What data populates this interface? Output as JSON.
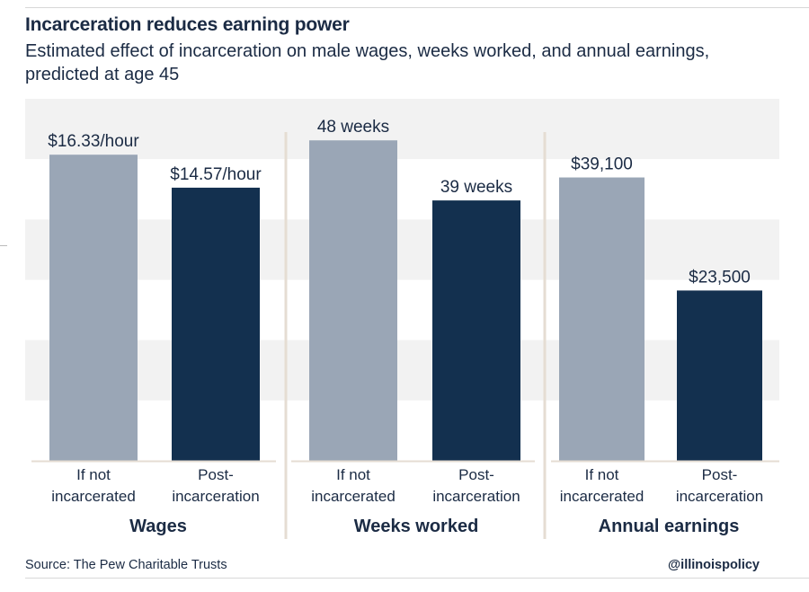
{
  "header": {
    "title": "Incarceration reduces earning power",
    "subtitle": "Estimated effect of incarceration on male wages, weeks worked, and annual earnings, predicted at age 45"
  },
  "footer": {
    "source": "Source: The Pew Charitable Trusts",
    "handle": "@illinoispolicy"
  },
  "colors": {
    "not_incarcerated": "#9aa6b6",
    "post_incarceration": "#13304f",
    "band_light": "#f2f2f2",
    "divider": "#e5ddd3"
  },
  "chart_data": [
    {
      "type": "bar",
      "group_label": "Wages",
      "categories": [
        "If not incarcerated",
        "Post-incarceration"
      ],
      "category_lines": [
        [
          "If not",
          "incarcerated"
        ],
        [
          "Post-",
          "incarceration"
        ]
      ],
      "values": [
        16.33,
        14.57
      ],
      "data_labels": [
        "$16.33/hour",
        "$14.57/hour"
      ],
      "ylim": [
        0,
        19.31
      ]
    },
    {
      "type": "bar",
      "group_label": "Weeks worked",
      "categories": [
        "If not incarcerated",
        "Post-incarceration"
      ],
      "category_lines": [
        [
          "If not",
          "incarcerated"
        ],
        [
          "Post-",
          "incarceration"
        ]
      ],
      "values": [
        48,
        39
      ],
      "data_labels": [
        "48 weeks",
        "39 weeks"
      ],
      "ylim": [
        0,
        54.22
      ]
    },
    {
      "type": "bar",
      "group_label": "Annual earnings",
      "categories": [
        "If not incarcerated",
        "Post-incarceration"
      ],
      "category_lines": [
        [
          "If not",
          "incarcerated"
        ],
        [
          "Post-",
          "incarceration"
        ]
      ],
      "values": [
        39100,
        23500
      ],
      "data_labels": [
        "$39,100",
        "$23,500"
      ],
      "ylim": [
        0,
        49950
      ]
    }
  ]
}
